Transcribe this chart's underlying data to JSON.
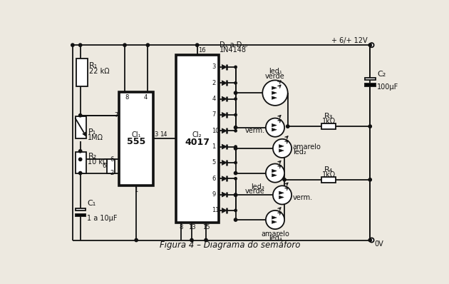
{
  "bg": "#ede9e0",
  "lc": "#111111",
  "lw": 1.3,
  "title": "Figura 4 – Diagrama do semáforo",
  "R1_label": "R₁",
  "R1_val": "22 kΩ",
  "R2_label": "R₂",
  "R2_val": "10 kΩ",
  "R3_label": "R₃",
  "R3_val": "1kΩ",
  "R4_label": "R₄",
  "R4_val": "1kΩ",
  "P1_label": "P₁",
  "P1_val": "1MΩ",
  "C1_label": "C₁",
  "C1_val": "1 a 10μF",
  "C2_label": "C₂",
  "C2_val": "100μF",
  "CI1_top": "CI₁",
  "CI1_bot": "555",
  "CI2_top": "CI₂",
  "CI2_bot": "4017",
  "D_top": "D₁ a D₁₀",
  "D_bot": "1N4148",
  "led1_a": "led₁",
  "led1_b": "verde",
  "led2_a": "amarelo",
  "led2_b": "led₂",
  "led3_a": "led₃",
  "led3_b": "verde",
  "led4_a": "amarelo",
  "led4_b": "led₄",
  "verm": "verm.",
  "pwr": "+ 6/+ 12V",
  "gnd": "0V",
  "pin_nums_ci2": [
    "3",
    "2",
    "4",
    "7",
    "10",
    "1",
    "5",
    "6",
    "9",
    "11"
  ]
}
